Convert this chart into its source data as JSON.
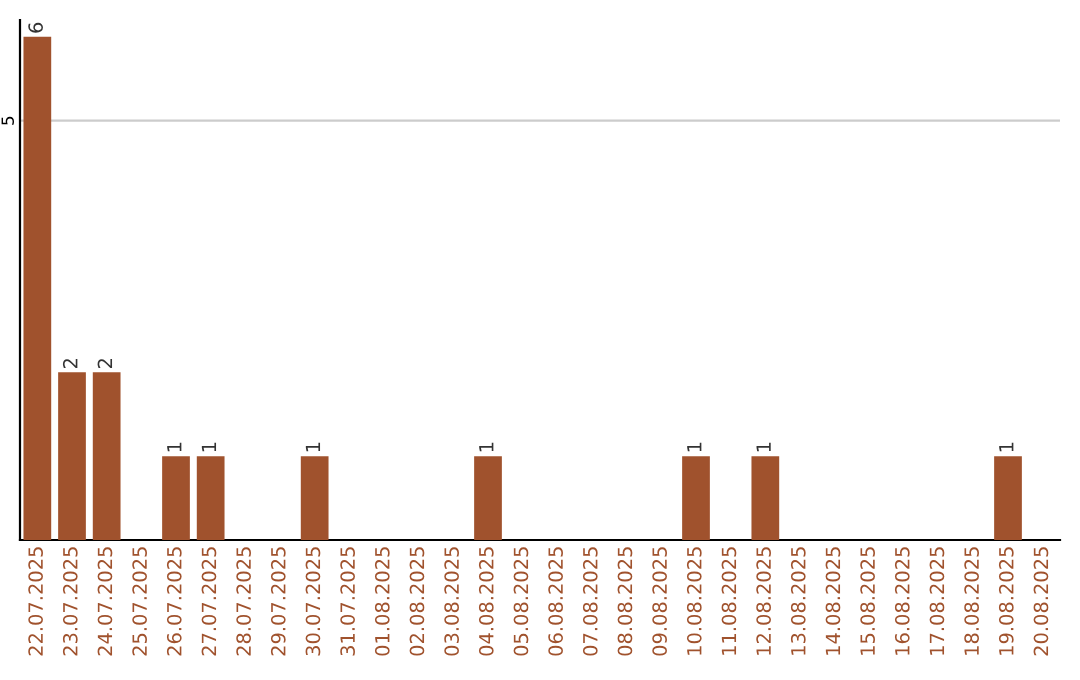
{
  "chart_data": {
    "type": "bar",
    "categories": [
      "22.07.2025",
      "23.07.2025",
      "24.07.2025",
      "25.07.2025",
      "26.07.2025",
      "27.07.2025",
      "28.07.2025",
      "29.07.2025",
      "30.07.2025",
      "31.07.2025",
      "01.08.2025",
      "02.08.2025",
      "03.08.2025",
      "04.08.2025",
      "05.08.2025",
      "06.08.2025",
      "07.08.2025",
      "08.08.2025",
      "09.08.2025",
      "10.08.2025",
      "11.08.2025",
      "12.08.2025",
      "13.08.2025",
      "14.08.2025",
      "15.08.2025",
      "16.08.2025",
      "17.08.2025",
      "18.08.2025",
      "19.08.2025",
      "20.08.2025"
    ],
    "values": [
      6,
      2,
      2,
      0,
      1,
      1,
      0,
      0,
      1,
      0,
      0,
      0,
      0,
      1,
      0,
      0,
      0,
      0,
      0,
      1,
      0,
      1,
      0,
      0,
      0,
      0,
      0,
      0,
      1,
      0
    ],
    "value_labels": [
      "6",
      "2",
      "2",
      null,
      "1",
      "1",
      null,
      null,
      "1",
      null,
      null,
      null,
      null,
      "1",
      null,
      null,
      null,
      null,
      null,
      "1",
      null,
      "1",
      null,
      null,
      null,
      null,
      null,
      null,
      "1",
      null
    ],
    "color": "#a0522d",
    "ylim": [
      0,
      6.2
    ],
    "yticks": [
      5
    ],
    "grid": "y"
  }
}
